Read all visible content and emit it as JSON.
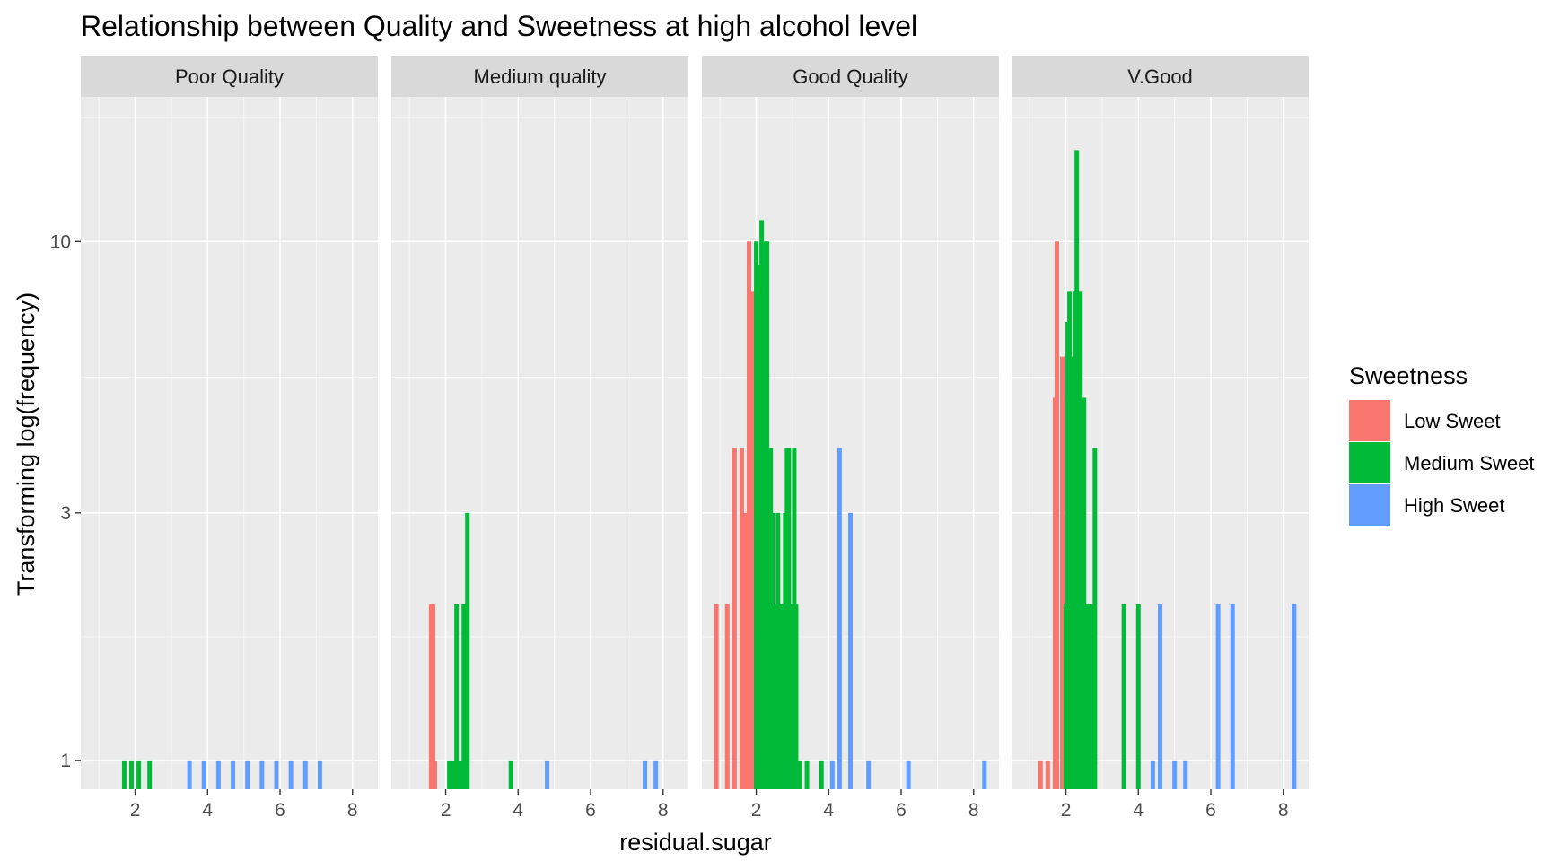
{
  "chart_data": {
    "type": "bar",
    "title": "Relationship between Quality and Sweetness at high alcohol level",
    "xlabel": "residual.sugar",
    "ylabel": "Transforming log(frequency)",
    "y_scale": "log",
    "x_ticks": [
      2,
      4,
      6,
      8
    ],
    "y_ticks": [
      1,
      3,
      10
    ],
    "xlim": [
      0.5,
      8.7
    ],
    "ylim": [
      0.88,
      19
    ],
    "grid": true,
    "legend": {
      "title": "Sweetness",
      "placement": "right",
      "entries": [
        {
          "label": "Low Sweet",
          "color": "#F8766D"
        },
        {
          "label": "Medium Sweet",
          "color": "#00BA38"
        },
        {
          "label": "High Sweet",
          "color": "#619CFF"
        }
      ]
    },
    "colors": {
      "Low Sweet": "#F8766D",
      "Medium Sweet": "#00BA38",
      "High Sweet": "#619CFF"
    },
    "panels": [
      {
        "label": "Poor Quality",
        "bars": [
          {
            "series": "Medium Sweet",
            "x": 1.7,
            "y": 1
          },
          {
            "series": "Medium Sweet",
            "x": 1.9,
            "y": 1
          },
          {
            "series": "Medium Sweet",
            "x": 2.1,
            "y": 1
          },
          {
            "series": "Medium Sweet",
            "x": 2.4,
            "y": 1
          },
          {
            "series": "High Sweet",
            "x": 3.5,
            "y": 1
          },
          {
            "series": "High Sweet",
            "x": 3.9,
            "y": 1
          },
          {
            "series": "High Sweet",
            "x": 4.3,
            "y": 1
          },
          {
            "series": "High Sweet",
            "x": 4.7,
            "y": 1
          },
          {
            "series": "High Sweet",
            "x": 5.1,
            "y": 1
          },
          {
            "series": "High Sweet",
            "x": 5.5,
            "y": 1
          },
          {
            "series": "High Sweet",
            "x": 5.9,
            "y": 1
          },
          {
            "series": "High Sweet",
            "x": 6.3,
            "y": 1
          },
          {
            "series": "High Sweet",
            "x": 6.7,
            "y": 1
          },
          {
            "series": "High Sweet",
            "x": 7.1,
            "y": 1
          }
        ]
      },
      {
        "label": "Medium quality",
        "bars": [
          {
            "series": "Low Sweet",
            "x": 1.6,
            "y": 2
          },
          {
            "series": "Low Sweet",
            "x": 1.65,
            "y": 2
          },
          {
            "series": "Low Sweet",
            "x": 1.7,
            "y": 1
          },
          {
            "series": "Medium Sweet",
            "x": 2.1,
            "y": 1
          },
          {
            "series": "Medium Sweet",
            "x": 2.2,
            "y": 1
          },
          {
            "series": "Medium Sweet",
            "x": 2.3,
            "y": 2
          },
          {
            "series": "Medium Sweet",
            "x": 2.4,
            "y": 1
          },
          {
            "series": "Medium Sweet",
            "x": 2.5,
            "y": 2
          },
          {
            "series": "Medium Sweet",
            "x": 2.6,
            "y": 3
          },
          {
            "series": "Medium Sweet",
            "x": 3.8,
            "y": 1
          },
          {
            "series": "High Sweet",
            "x": 4.8,
            "y": 1
          },
          {
            "series": "High Sweet",
            "x": 7.5,
            "y": 1
          },
          {
            "series": "High Sweet",
            "x": 7.8,
            "y": 1
          }
        ]
      },
      {
        "label": "Good Quality",
        "bars": [
          {
            "series": "Low Sweet",
            "x": 0.9,
            "y": 2
          },
          {
            "series": "Low Sweet",
            "x": 1.2,
            "y": 2
          },
          {
            "series": "Low Sweet",
            "x": 1.4,
            "y": 4
          },
          {
            "series": "Low Sweet",
            "x": 1.6,
            "y": 4
          },
          {
            "series": "Low Sweet",
            "x": 1.65,
            "y": 3
          },
          {
            "series": "Low Sweet",
            "x": 1.7,
            "y": 3
          },
          {
            "series": "Low Sweet",
            "x": 1.8,
            "y": 10
          },
          {
            "series": "Low Sweet",
            "x": 1.85,
            "y": 6
          },
          {
            "series": "Low Sweet",
            "x": 1.9,
            "y": 8
          },
          {
            "series": "Low Sweet",
            "x": 1.95,
            "y": 6
          },
          {
            "series": "Medium Sweet",
            "x": 2.0,
            "y": 10
          },
          {
            "series": "Medium Sweet",
            "x": 2.05,
            "y": 9
          },
          {
            "series": "Medium Sweet",
            "x": 2.1,
            "y": 9
          },
          {
            "series": "Medium Sweet",
            "x": 2.15,
            "y": 11
          },
          {
            "series": "Medium Sweet",
            "x": 2.2,
            "y": 9
          },
          {
            "series": "Medium Sweet",
            "x": 2.25,
            "y": 10
          },
          {
            "series": "Medium Sweet",
            "x": 2.3,
            "y": 10
          },
          {
            "series": "Medium Sweet",
            "x": 2.35,
            "y": 4
          },
          {
            "series": "Medium Sweet",
            "x": 2.4,
            "y": 4
          },
          {
            "series": "Medium Sweet",
            "x": 2.45,
            "y": 3
          },
          {
            "series": "Medium Sweet",
            "x": 2.5,
            "y": 2
          },
          {
            "series": "Medium Sweet",
            "x": 2.6,
            "y": 3
          },
          {
            "series": "Medium Sweet",
            "x": 2.7,
            "y": 2
          },
          {
            "series": "Medium Sweet",
            "x": 2.8,
            "y": 3
          },
          {
            "series": "Medium Sweet",
            "x": 2.85,
            "y": 4
          },
          {
            "series": "Medium Sweet",
            "x": 2.9,
            "y": 4
          },
          {
            "series": "Medium Sweet",
            "x": 3.0,
            "y": 2
          },
          {
            "series": "Medium Sweet",
            "x": 3.05,
            "y": 4
          },
          {
            "series": "Medium Sweet",
            "x": 3.1,
            "y": 2
          },
          {
            "series": "Medium Sweet",
            "x": 3.2,
            "y": 1
          },
          {
            "series": "Medium Sweet",
            "x": 3.4,
            "y": 1
          },
          {
            "series": "Medium Sweet",
            "x": 3.8,
            "y": 1
          },
          {
            "series": "High Sweet",
            "x": 4.1,
            "y": 1
          },
          {
            "series": "High Sweet",
            "x": 4.3,
            "y": 4
          },
          {
            "series": "High Sweet",
            "x": 4.6,
            "y": 3
          },
          {
            "series": "High Sweet",
            "x": 5.1,
            "y": 1
          },
          {
            "series": "High Sweet",
            "x": 6.2,
            "y": 1
          },
          {
            "series": "High Sweet",
            "x": 8.3,
            "y": 1
          }
        ]
      },
      {
        "label": "V.Good",
        "bars": [
          {
            "series": "Low Sweet",
            "x": 1.3,
            "y": 1
          },
          {
            "series": "Low Sweet",
            "x": 1.5,
            "y": 1
          },
          {
            "series": "Low Sweet",
            "x": 1.7,
            "y": 5
          },
          {
            "series": "Low Sweet",
            "x": 1.75,
            "y": 10
          },
          {
            "series": "Low Sweet",
            "x": 1.9,
            "y": 6
          },
          {
            "series": "Medium Sweet",
            "x": 2.0,
            "y": 2
          },
          {
            "series": "Medium Sweet",
            "x": 2.05,
            "y": 7
          },
          {
            "series": "Medium Sweet",
            "x": 2.1,
            "y": 8
          },
          {
            "series": "Medium Sweet",
            "x": 2.15,
            "y": 5
          },
          {
            "series": "Medium Sweet",
            "x": 2.2,
            "y": 6
          },
          {
            "series": "Medium Sweet",
            "x": 2.25,
            "y": 8
          },
          {
            "series": "Medium Sweet",
            "x": 2.3,
            "y": 15
          },
          {
            "series": "Medium Sweet",
            "x": 2.35,
            "y": 7
          },
          {
            "series": "Medium Sweet",
            "x": 2.4,
            "y": 8
          },
          {
            "series": "Medium Sweet",
            "x": 2.45,
            "y": 5
          },
          {
            "series": "Medium Sweet",
            "x": 2.5,
            "y": 5
          },
          {
            "series": "Medium Sweet",
            "x": 2.6,
            "y": 2
          },
          {
            "series": "Medium Sweet",
            "x": 2.7,
            "y": 2
          },
          {
            "series": "Medium Sweet",
            "x": 2.8,
            "y": 4
          },
          {
            "series": "Medium Sweet",
            "x": 3.6,
            "y": 2
          },
          {
            "series": "Medium Sweet",
            "x": 4.0,
            "y": 2
          },
          {
            "series": "High Sweet",
            "x": 4.4,
            "y": 1
          },
          {
            "series": "High Sweet",
            "x": 4.6,
            "y": 2
          },
          {
            "series": "High Sweet",
            "x": 5.0,
            "y": 1
          },
          {
            "series": "High Sweet",
            "x": 5.3,
            "y": 1
          },
          {
            "series": "High Sweet",
            "x": 6.2,
            "y": 2
          },
          {
            "series": "High Sweet",
            "x": 6.6,
            "y": 2
          },
          {
            "series": "High Sweet",
            "x": 8.3,
            "y": 2
          }
        ]
      }
    ]
  }
}
